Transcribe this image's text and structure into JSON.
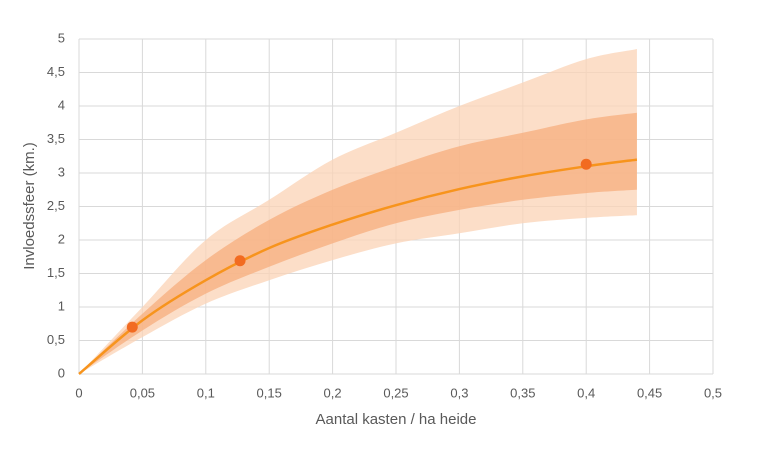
{
  "chart_data": {
    "type": "line",
    "x_label": "Aantal kasten / ha heide",
    "y_label": "Invloedssfeer (km.)",
    "xlim": [
      0,
      0.5
    ],
    "ylim": [
      0,
      5
    ],
    "xticks": [
      0,
      {
        "value": 0.05,
        "label": "0,05"
      },
      {
        "value": 0.1,
        "label": "0,1"
      },
      {
        "value": 0.15,
        "label": "0,15"
      },
      {
        "value": 0.2,
        "label": "0,2"
      },
      {
        "value": 0.25,
        "label": "0,25"
      },
      {
        "value": 0.3,
        "label": "0,3"
      },
      {
        "value": 0.35,
        "label": "0,35"
      },
      {
        "value": 0.4,
        "label": "0,4"
      },
      {
        "value": 0.45,
        "label": "0,45"
      },
      {
        "value": 0.5,
        "label": "0,5"
      }
    ],
    "yticks": [
      0,
      {
        "value": 0.5,
        "label": "0,5"
      },
      1,
      {
        "value": 1.5,
        "label": "1,5"
      },
      2,
      {
        "value": 2.5,
        "label": "2,5"
      },
      3,
      {
        "value": 3.5,
        "label": "3,5"
      },
      4,
      {
        "value": 4.5,
        "label": "4,5"
      },
      5
    ],
    "grid": true,
    "x": [
      0,
      0.05,
      0.1,
      0.15,
      0.2,
      0.25,
      0.3,
      0.35,
      0.4,
      0.44
    ],
    "bands": [
      {
        "color": "#fbd3b5",
        "upper": [
          0,
          1.0,
          2.0,
          2.6,
          3.2,
          3.6,
          4.0,
          4.35,
          4.7,
          4.85
        ],
        "lower": [
          0,
          0.55,
          1.05,
          1.4,
          1.7,
          1.95,
          2.1,
          2.25,
          2.33,
          2.37
        ]
      },
      {
        "color": "#f7ae7e",
        "upper": [
          0,
          0.9,
          1.7,
          2.3,
          2.75,
          3.1,
          3.4,
          3.6,
          3.8,
          3.9
        ],
        "lower": [
          0,
          0.65,
          1.2,
          1.6,
          1.95,
          2.25,
          2.45,
          2.6,
          2.7,
          2.75
        ]
      }
    ],
    "series": [
      {
        "color": "#f7941d",
        "values": [
          0,
          0.8,
          1.4,
          1.88,
          2.23,
          2.52,
          2.76,
          2.95,
          3.1,
          3.2
        ]
      }
    ],
    "points": {
      "color": "#f26b21",
      "x": [
        0.042,
        0.127,
        0.4
      ],
      "values": [
        0.7,
        1.69,
        3.13
      ]
    }
  }
}
